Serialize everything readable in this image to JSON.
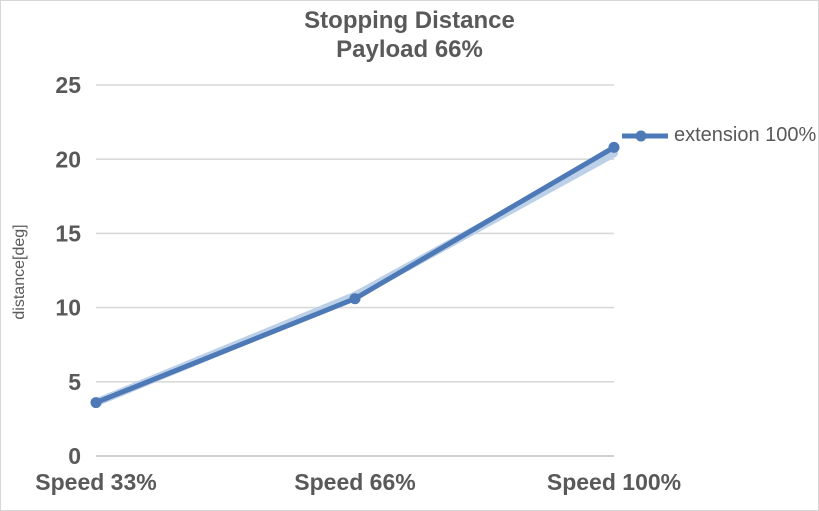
{
  "title": {
    "line1": "Stopping Distance",
    "line2": "Payload 66%"
  },
  "legend": {
    "label": "extension 100%",
    "position": "right"
  },
  "chart_data": {
    "type": "line",
    "title": "Stopping Distance Payload 66%",
    "categories": [
      "Speed 33%",
      "Speed 66%",
      "Speed 100%"
    ],
    "series": [
      {
        "name": "",
        "legend_visible": false,
        "values": [
          3.6,
          10.8,
          20.4
        ],
        "color": "#bcd0e8",
        "line_width": 8,
        "markers": false
      },
      {
        "name": "extension 100%",
        "legend_visible": true,
        "values": [
          3.6,
          10.6,
          20.8
        ],
        "color": "#4e79b7",
        "line_width": 5,
        "markers": true
      }
    ],
    "xlabel": "",
    "ylabel": "distance[deg]",
    "ylim": [
      0,
      25
    ],
    "yticks": [
      0,
      5,
      10,
      15,
      20,
      25
    ],
    "grid": true,
    "legend_position": "right"
  },
  "colors": {
    "series_blue": "#4e79b7",
    "halo_blue": "#bcd0e8",
    "gridline": "#d9d9d9",
    "axis_line": "#c0c0c0",
    "text": "#595959",
    "border": "#d7d7d7"
  }
}
